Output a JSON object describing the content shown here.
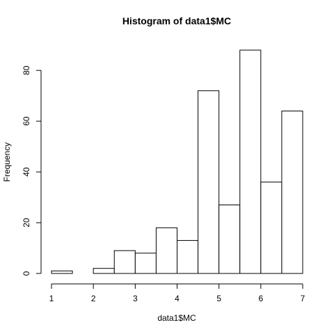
{
  "chart_data": {
    "type": "bar",
    "title": "Histogram of data1$MC",
    "xlabel": "data1$MC",
    "ylabel": "Frequency",
    "bins": [
      {
        "start": 1.0,
        "end": 1.5,
        "count": 1
      },
      {
        "start": 1.5,
        "end": 2.0,
        "count": 0
      },
      {
        "start": 2.0,
        "end": 2.5,
        "count": 2
      },
      {
        "start": 2.5,
        "end": 3.0,
        "count": 9
      },
      {
        "start": 3.0,
        "end": 3.5,
        "count": 8
      },
      {
        "start": 3.5,
        "end": 4.0,
        "count": 18
      },
      {
        "start": 4.0,
        "end": 4.5,
        "count": 13
      },
      {
        "start": 4.5,
        "end": 5.0,
        "count": 72
      },
      {
        "start": 5.0,
        "end": 5.5,
        "count": 27
      },
      {
        "start": 5.5,
        "end": 6.0,
        "count": 88
      },
      {
        "start": 6.0,
        "end": 6.5,
        "count": 36
      },
      {
        "start": 6.5,
        "end": 7.0,
        "count": 64
      }
    ],
    "x_ticks": [
      "1",
      "2",
      "3",
      "4",
      "5",
      "6",
      "7"
    ],
    "y_ticks": [
      "0",
      "20",
      "40",
      "60",
      "80"
    ],
    "xlim": [
      1,
      7
    ],
    "ylim": [
      0,
      88
    ],
    "grid": false,
    "bar_fill": "#ffffff",
    "bar_stroke": "#000000"
  }
}
